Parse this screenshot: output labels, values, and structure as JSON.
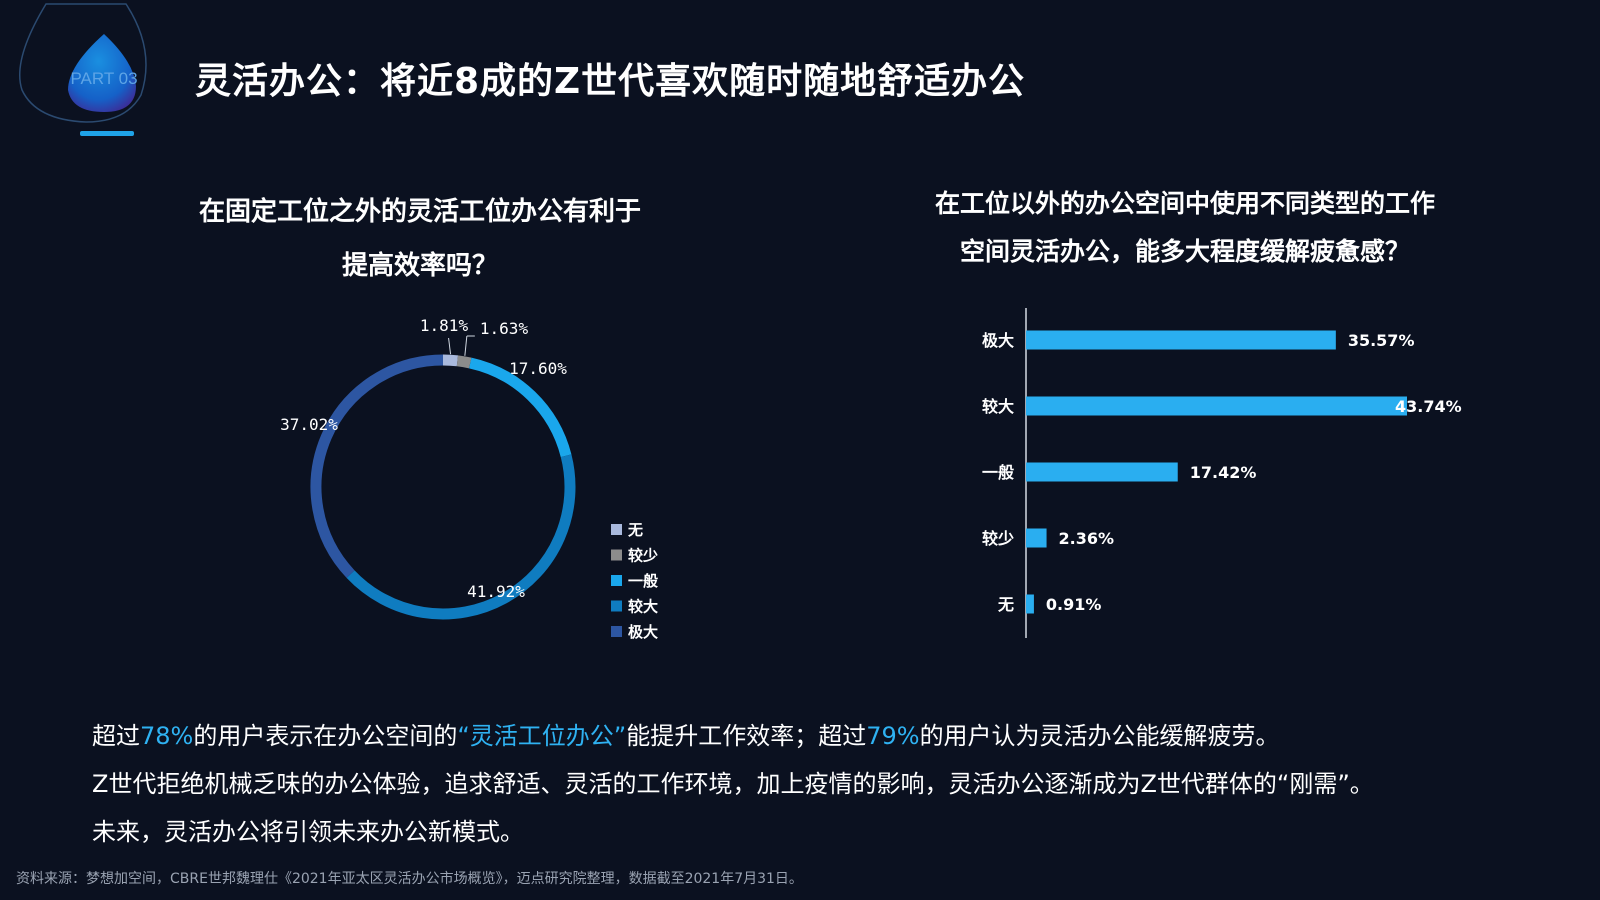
{
  "header": {
    "badge_text": "PART 03",
    "title": "灵活办公：将近8成的Z世代喜欢随时随地舒适办公"
  },
  "colors": {
    "background": "#0b1120",
    "accent": "#2fb2f2",
    "bar": "#2aaef0"
  },
  "chart_data": [
    {
      "type": "pie",
      "variant": "donut",
      "title_lines": [
        "在固定工位之外的灵活工位办公有利于",
        "提高效率吗？"
      ],
      "categories": [
        "无",
        "较少",
        "一般",
        "较大",
        "极大"
      ],
      "values": [
        1.81,
        1.63,
        17.6,
        41.92,
        37.02
      ],
      "labels": [
        "1.81%",
        "1.63%",
        "17.60%",
        "41.92%",
        "37.02%"
      ],
      "colors": [
        "#a9b9dd",
        "#8c8c8c",
        "#1aa7ec",
        "#0f7cc0",
        "#2d56a2"
      ],
      "legend_position": "right"
    },
    {
      "type": "bar",
      "orientation": "horizontal",
      "title_lines": [
        "在工位以外的办公空间中使用不同类型的工作",
        "空间灵活办公，能多大程度缓解疲惫感？"
      ],
      "categories": [
        "极大",
        "较大",
        "一般",
        "较少",
        "无"
      ],
      "values": [
        35.57,
        43.74,
        17.42,
        2.36,
        0.91
      ],
      "labels": [
        "35.57%",
        "43.74%",
        "17.42%",
        "2.36%",
        "0.91%"
      ],
      "xlim": [
        0,
        50
      ],
      "grid": false
    }
  ],
  "summary": {
    "line1_part1": "超过",
    "line1_hl1": "78%",
    "line1_part2": "的用户表示在办公空间的",
    "line1_hl2": "“灵活工位办公”",
    "line1_part3": "能提升工作效率；超过",
    "line1_hl3": "79%",
    "line1_part4": "的用户认为灵活办公能缓解疲劳。",
    "line2": "Z世代拒绝机械乏味的办公体验，追求舒适、灵活的工作环境，加上疫情的影响，灵活办公逐渐成为Z世代群体的“刚需”。",
    "line3": "未来，灵活办公将引领未来办公新模式。"
  },
  "source": "资料来源：梦想加空间，CBRE世邦魏理仕《2021年亚太区灵活办公市场概览》，迈点研究院整理，数据截至2021年7月31日。"
}
